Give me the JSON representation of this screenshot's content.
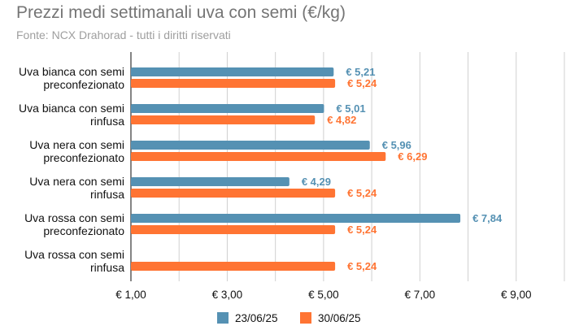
{
  "chart_data": {
    "type": "bar",
    "orientation": "horizontal",
    "title": "Prezzi medi settimanali uva con semi (€/kg)",
    "subtitle": "Fonte: NCX Drahorad - tutti i diritti riservati",
    "categories": [
      [
        "Uva bianca con semi",
        "preconfezionato"
      ],
      [
        "Uva bianca con semi",
        "rinfusa"
      ],
      [
        "Uva nera con semi",
        "preconfezionato"
      ],
      [
        "Uva nera con semi",
        "rinfusa"
      ],
      [
        "Uva rossa con semi",
        "preconfezionato"
      ],
      [
        "Uva rossa con semi",
        "rinfusa"
      ]
    ],
    "series": [
      {
        "name": "23/06/25",
        "color": "#5591b3",
        "values": [
          5.21,
          5.01,
          5.96,
          4.29,
          7.84,
          null
        ],
        "labels": [
          "€ 5,21",
          "€ 5,01",
          "€ 5,96",
          "€ 4,29",
          "€ 7,84",
          ""
        ]
      },
      {
        "name": "30/06/25",
        "color": "#ff7433",
        "values": [
          5.24,
          4.82,
          6.29,
          5.24,
          5.24,
          5.24
        ],
        "labels": [
          "€ 5,24",
          "€ 4,82",
          "€ 6,29",
          "€ 5,24",
          "€ 5,24",
          "€ 5,24"
        ]
      }
    ],
    "x_ticks": [
      1,
      3,
      5,
      7,
      9
    ],
    "x_tick_labels": [
      "€ 1,00",
      "€ 3,00",
      "€ 5,00",
      "€ 7,00",
      "€ 9,00"
    ],
    "xlim": [
      1,
      10
    ],
    "grid": true,
    "legend_position": "bottom"
  }
}
